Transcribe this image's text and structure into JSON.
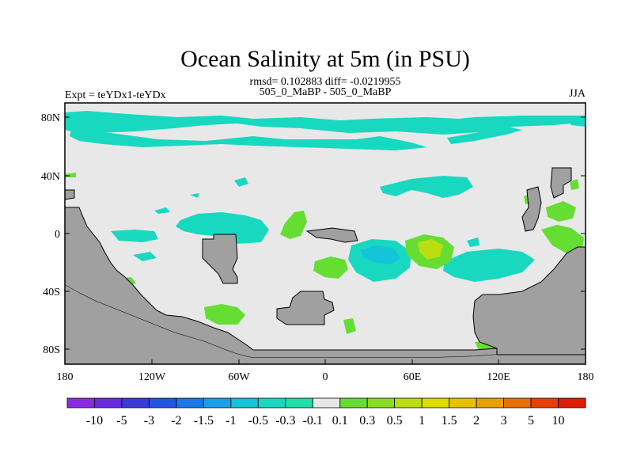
{
  "title": "Ocean Salinity at 5m (in PSU)",
  "stats": "rmsd= 0.102883 diff= -0.0219955",
  "left_label": "Expt = teYDx1-teYDx",
  "center_label": "505_0_MaBP - 505_0_MaBP",
  "right_label": "JJA",
  "y_ticks": [
    "80N",
    "40N",
    "0",
    "40S",
    "80S"
  ],
  "x_ticks": [
    "180",
    "120W",
    "60W",
    "0",
    "60E",
    "120E",
    "180"
  ],
  "colorbar": {
    "labels": [
      "-10",
      "-5",
      "-3",
      "-2",
      "-1.5",
      "-1",
      "-0.5",
      "-0.3",
      "-0.1",
      "0.1",
      "0.3",
      "0.5",
      "1",
      "1.5",
      "2",
      "3",
      "5",
      "10"
    ],
    "colors": [
      "#8a2be2",
      "#6a2ae0",
      "#3a3ad8",
      "#2255e0",
      "#1a78e8",
      "#1aa0e8",
      "#14c4d8",
      "#18d8c0",
      "#1ee0a8",
      "#e8e8e8",
      "#66dd33",
      "#88dd22",
      "#bbdd11",
      "#dddd00",
      "#e8c000",
      "#eaa000",
      "#e87000",
      "#e84000",
      "#e01c00"
    ]
  }
}
